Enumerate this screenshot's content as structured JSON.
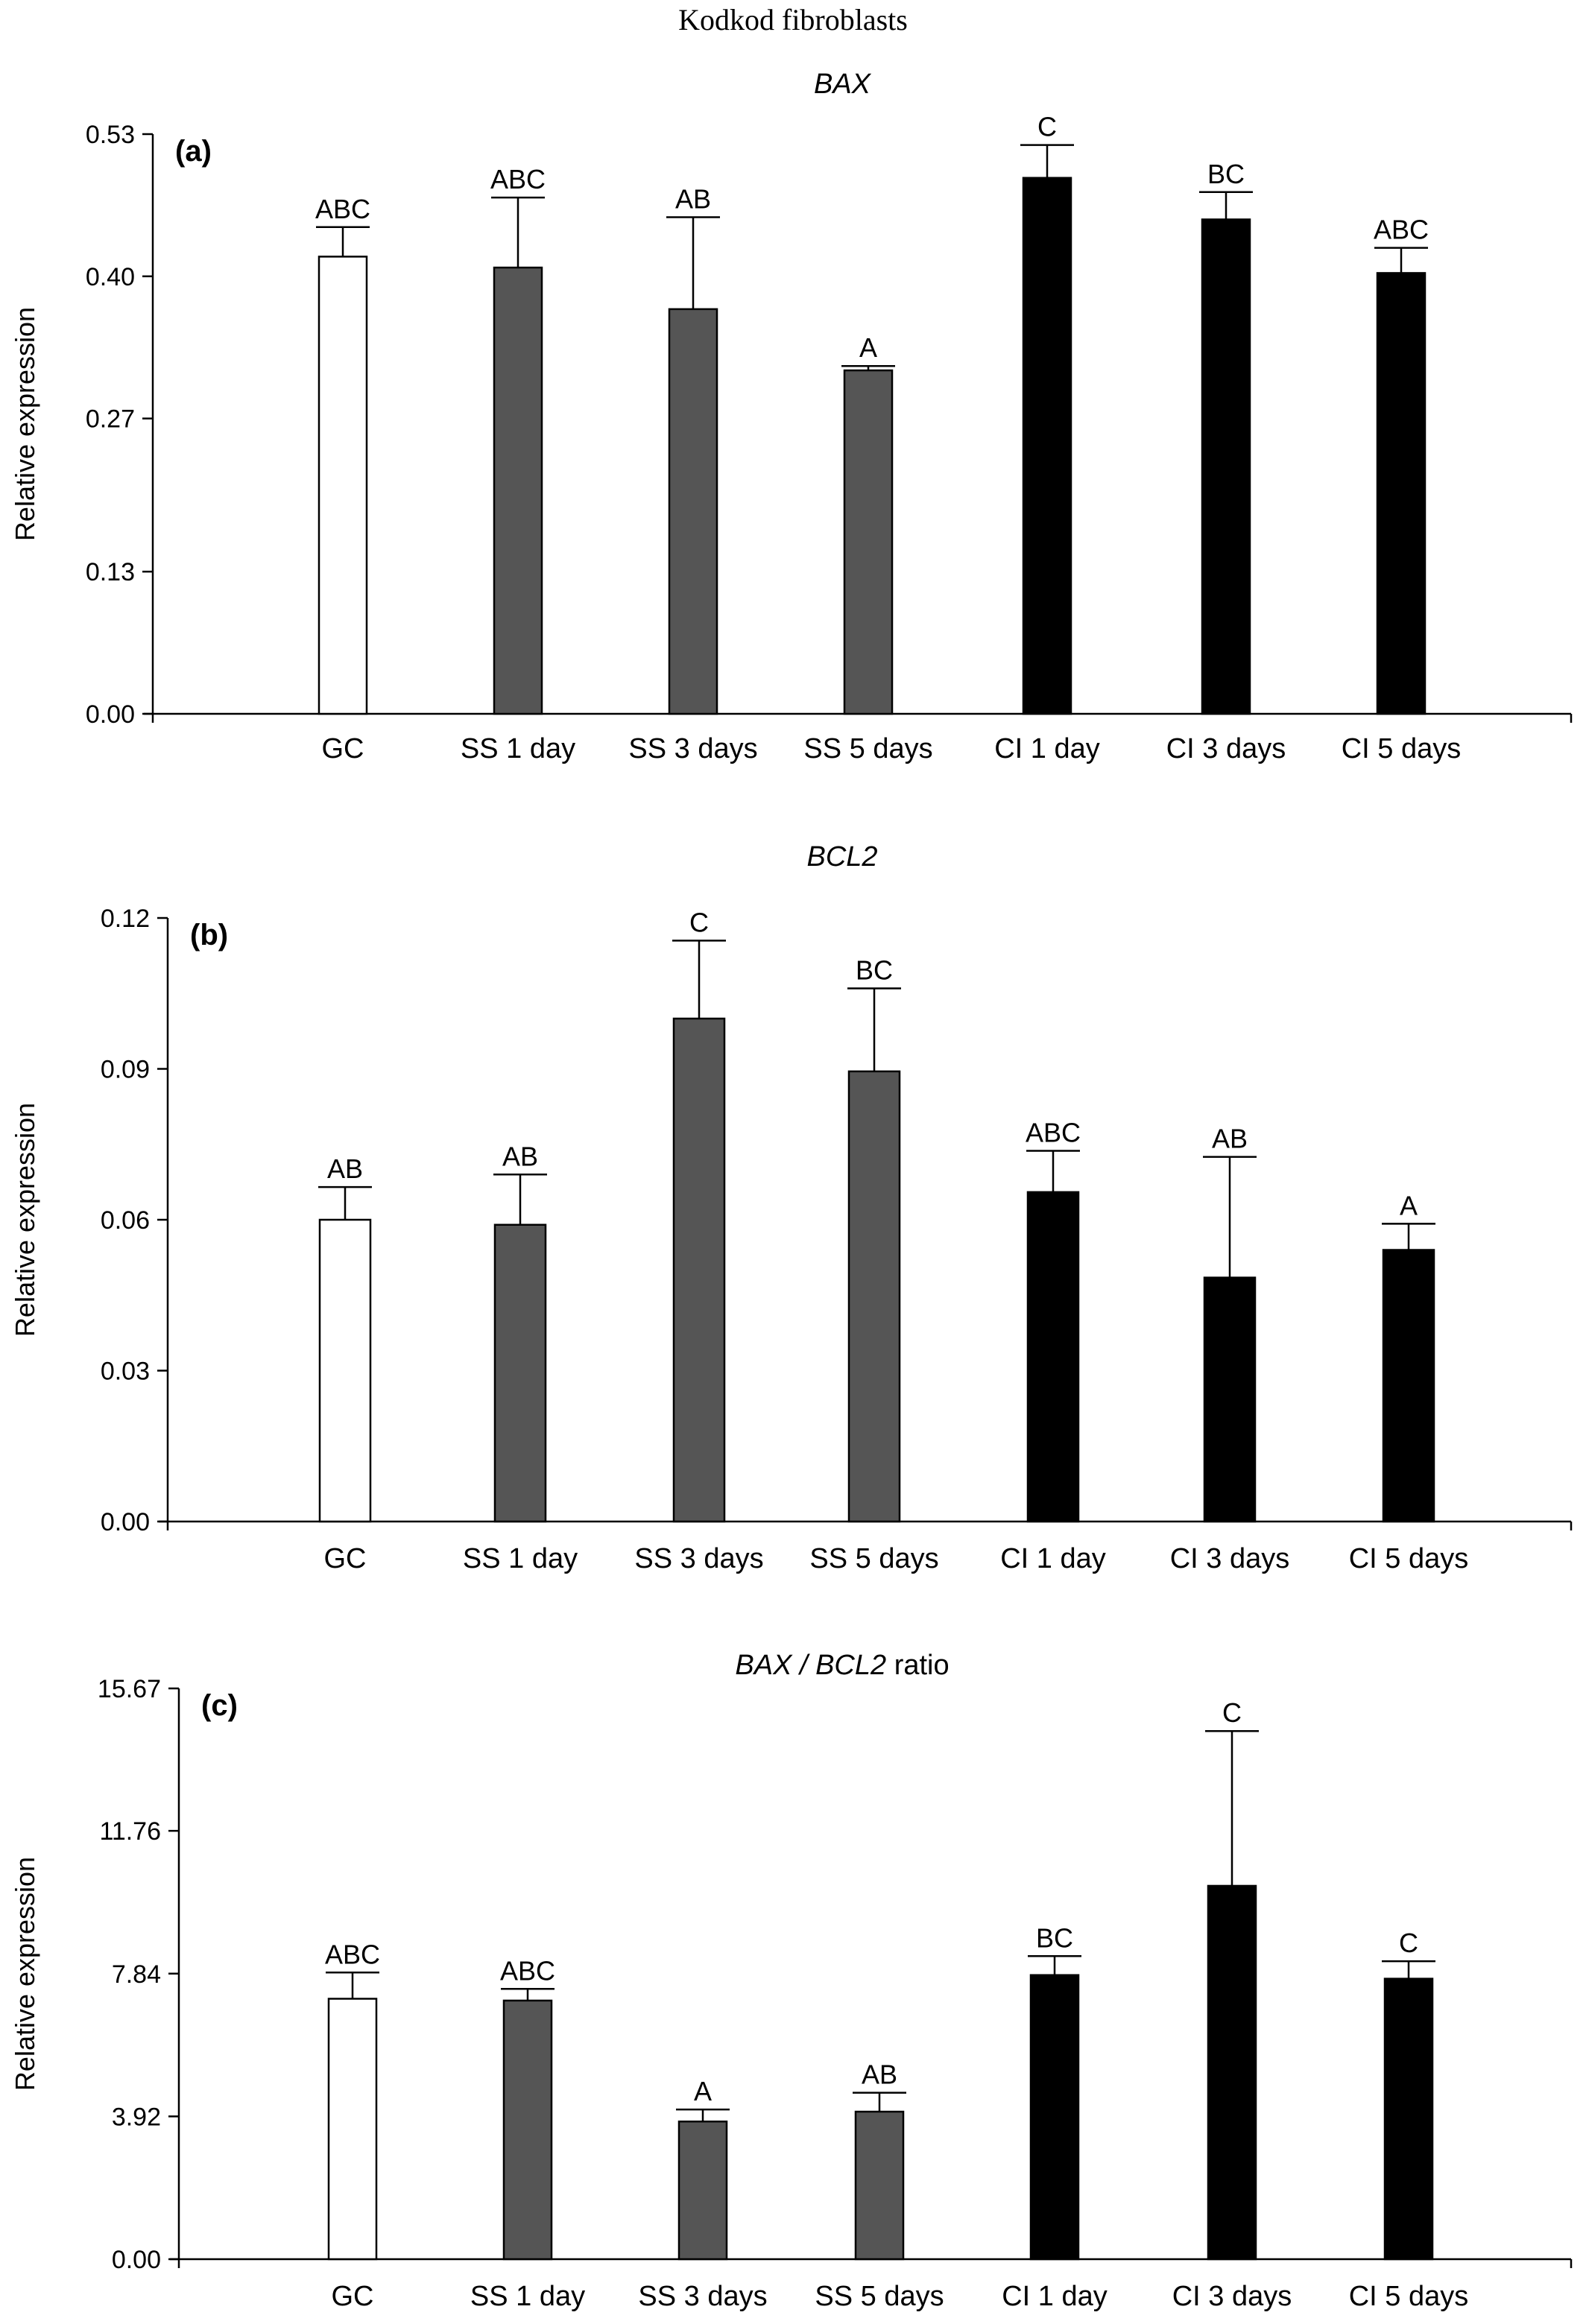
{
  "figure": {
    "title": "Kodkod fibroblasts"
  },
  "colors": {
    "white": "#ffffff",
    "dark_gray": "#555555",
    "black": "#000000"
  },
  "chart_data": [
    {
      "type": "bar",
      "panel_label": "(a)",
      "title": "BAX",
      "title_suffix": "",
      "ylabel": "Relative expression",
      "ylim": [
        0,
        0.53
      ],
      "yticks": [
        0.0,
        0.13,
        0.27,
        0.4,
        0.53
      ],
      "ytick_labels": [
        "0.00",
        "0.13",
        "0.27",
        "0.40",
        "0.53"
      ],
      "categories": [
        "GC",
        "SS 1 day",
        "SS 3 days",
        "SS 5 days",
        "CI 1 day",
        "CI 3 days",
        "CI 5 days"
      ],
      "values": [
        0.418,
        0.408,
        0.37,
        0.314,
        0.49,
        0.452,
        0.403
      ],
      "errors": [
        0.027,
        0.064,
        0.084,
        0.004,
        0.03,
        0.025,
        0.023
      ],
      "fills": [
        "white",
        "dark_gray",
        "dark_gray",
        "dark_gray",
        "black",
        "black",
        "black"
      ],
      "significance": [
        "ABC",
        "ABC",
        "AB",
        "A",
        "C",
        "BC",
        "ABC"
      ]
    },
    {
      "type": "bar",
      "panel_label": "(b)",
      "title": "BCL2",
      "title_suffix": "",
      "ylabel": "Relative expression",
      "ylim": [
        0,
        0.12
      ],
      "yticks": [
        0.0,
        0.03,
        0.06,
        0.09,
        0.12
      ],
      "ytick_labels": [
        "0.00",
        "0.03",
        "0.06",
        "0.09",
        "0.12"
      ],
      "categories": [
        "GC",
        "SS 1 day",
        "SS 3 days",
        "SS 5 days",
        "CI 1 day",
        "CI 3 days",
        "CI 5 days"
      ],
      "values": [
        0.06,
        0.059,
        0.1,
        0.0895,
        0.0655,
        0.0485,
        0.054
      ],
      "errors": [
        0.0065,
        0.01,
        0.0155,
        0.0165,
        0.0082,
        0.024,
        0.0052
      ],
      "fills": [
        "white",
        "dark_gray",
        "dark_gray",
        "dark_gray",
        "black",
        "black",
        "black"
      ],
      "significance": [
        "AB",
        "AB",
        "C",
        "BC",
        "ABC",
        "AB",
        "A"
      ]
    },
    {
      "type": "bar",
      "panel_label": "(c)",
      "title": "BAX / BCL2",
      "title_suffix": "ratio",
      "ylabel": "Relative expression",
      "ylim": [
        0,
        15.67
      ],
      "yticks": [
        0.0,
        3.92,
        7.84,
        11.76,
        15.67
      ],
      "ytick_labels": [
        "0.00",
        "3.92",
        "7.84",
        "11.76",
        "15.67"
      ],
      "categories": [
        "GC",
        "SS 1 day",
        "SS 3 days",
        "SS 5 days",
        "CI 1 day",
        "CI 3 days",
        "CI 5 days"
      ],
      "values": [
        7.15,
        7.1,
        3.78,
        4.05,
        7.8,
        10.25,
        7.7
      ],
      "errors": [
        0.72,
        0.32,
        0.33,
        0.52,
        0.52,
        4.25,
        0.48
      ],
      "fills": [
        "white",
        "dark_gray",
        "dark_gray",
        "dark_gray",
        "black",
        "black",
        "black"
      ],
      "significance": [
        "ABC",
        "ABC",
        "A",
        "AB",
        "BC",
        "C",
        "C"
      ]
    }
  ]
}
